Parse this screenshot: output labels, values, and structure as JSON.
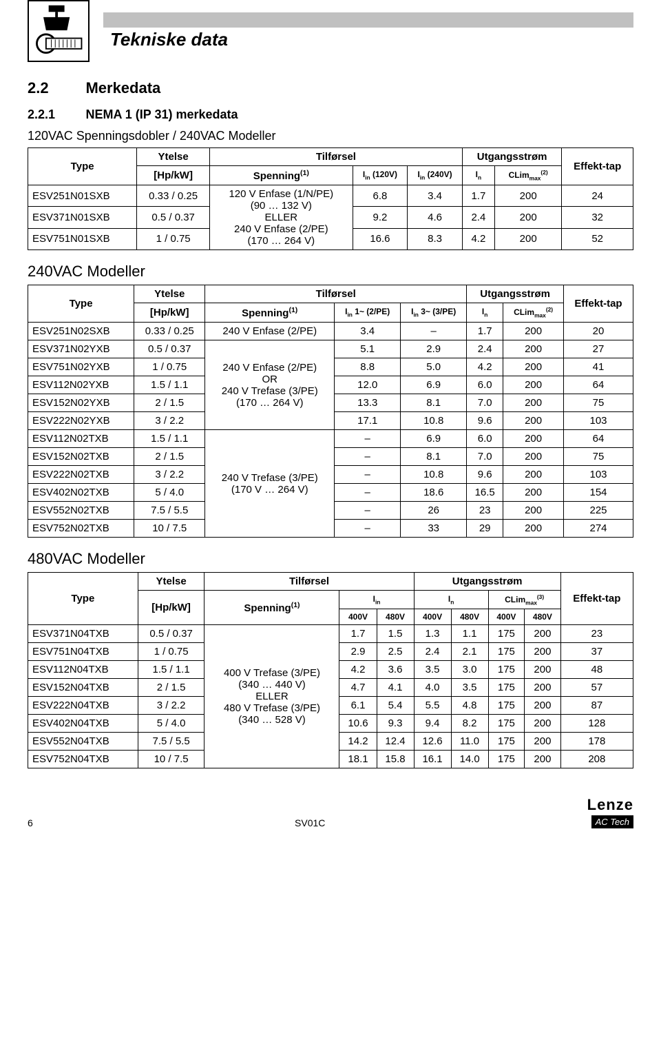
{
  "header": {
    "title": "Tekniske data"
  },
  "section": {
    "num": "2.2",
    "title": "Merkedata"
  },
  "subsection": {
    "num": "2.2.1",
    "title": "NEMA 1 (IP 31) merkedata"
  },
  "labels": {
    "type": "Type",
    "ytelse": "Ytelse",
    "hpkw": "[Hp/kW]",
    "tilforsel": "Tilførsel",
    "utgang": "Utgangsstrøm",
    "spenning": "Spenning",
    "sup1": "(1)",
    "effekttap": "Effekt-tap",
    "i_in": "I",
    "in_sub": "in",
    "i_n": "I",
    "n_sub": "n",
    "clim": "CLim",
    "max_sub": "max",
    "sup2": "(2)",
    "sup3": "(3)",
    "col_120v": "(120V)",
    "col_240v": "(240V)",
    "col_1p": "1~ (2/PE)",
    "col_3p": "3~ (3/PE)",
    "v400": "400V",
    "v480": "480V"
  },
  "t1": {
    "desc": "120VAC Spenningsdobler / 240VAC Modeller",
    "spenning_lines": [
      "120 V Enfase (1/N/PE)",
      "(90 … 132 V)",
      "ELLER",
      "240 V Enfase (2/PE)",
      "(170 … 264 V)"
    ],
    "rows": [
      {
        "type": "ESV251N01SXB",
        "hp": "0.33 / 0.25",
        "a": "6.8",
        "b": "3.4",
        "c": "1.7",
        "d": "200",
        "e": "24"
      },
      {
        "type": "ESV371N01SXB",
        "hp": "0.5 / 0.37",
        "a": "9.2",
        "b": "4.6",
        "c": "2.4",
        "d": "200",
        "e": "32"
      },
      {
        "type": "ESV751N01SXB",
        "hp": "1 / 0.75",
        "a": "16.6",
        "b": "8.3",
        "c": "4.2",
        "d": "200",
        "e": "52"
      }
    ]
  },
  "t2": {
    "header": "240VAC Modeller",
    "sp1": "240 V Enfase (2/PE)",
    "sp2_lines": [
      "240 V Enfase (2/PE)",
      "OR",
      "240 V Trefase (3/PE)",
      "(170 … 264 V)"
    ],
    "sp3_lines": [
      "240 V Trefase (3/PE)",
      "(170 V … 264 V)"
    ],
    "rows": [
      {
        "type": "ESV251N02SXB",
        "hp": "0.33 / 0.25",
        "a": "3.4",
        "b": "–",
        "c": "1.7",
        "d": "200",
        "e": "20"
      },
      {
        "type": "ESV371N02YXB",
        "hp": "0.5 / 0.37",
        "a": "5.1",
        "b": "2.9",
        "c": "2.4",
        "d": "200",
        "e": "27"
      },
      {
        "type": "ESV751N02YXB",
        "hp": "1 / 0.75",
        "a": "8.8",
        "b": "5.0",
        "c": "4.2",
        "d": "200",
        "e": "41"
      },
      {
        "type": "ESV112N02YXB",
        "hp": "1.5 / 1.1",
        "a": "12.0",
        "b": "6.9",
        "c": "6.0",
        "d": "200",
        "e": "64"
      },
      {
        "type": "ESV152N02YXB",
        "hp": "2 / 1.5",
        "a": "13.3",
        "b": "8.1",
        "c": "7.0",
        "d": "200",
        "e": "75"
      },
      {
        "type": "ESV222N02YXB",
        "hp": "3 / 2.2",
        "a": "17.1",
        "b": "10.8",
        "c": "9.6",
        "d": "200",
        "e": "103"
      },
      {
        "type": "ESV112N02TXB",
        "hp": "1.5 / 1.1",
        "a": "–",
        "b": "6.9",
        "c": "6.0",
        "d": "200",
        "e": "64"
      },
      {
        "type": "ESV152N02TXB",
        "hp": "2 / 1.5",
        "a": "–",
        "b": "8.1",
        "c": "7.0",
        "d": "200",
        "e": "75"
      },
      {
        "type": "ESV222N02TXB",
        "hp": "3 / 2.2",
        "a": "–",
        "b": "10.8",
        "c": "9.6",
        "d": "200",
        "e": "103"
      },
      {
        "type": "ESV402N02TXB",
        "hp": "5 / 4.0",
        "a": "–",
        "b": "18.6",
        "c": "16.5",
        "d": "200",
        "e": "154"
      },
      {
        "type": "ESV552N02TXB",
        "hp": "7.5 / 5.5",
        "a": "–",
        "b": "26",
        "c": "23",
        "d": "200",
        "e": "225"
      },
      {
        "type": "ESV752N02TXB",
        "hp": "10 / 7.5",
        "a": "–",
        "b": "33",
        "c": "29",
        "d": "200",
        "e": "274"
      }
    ]
  },
  "t3": {
    "header": "480VAC Modeller",
    "sp_lines": [
      "400 V Trefase (3/PE)",
      "(340 … 440 V)",
      "ELLER",
      "480 V Trefase (3/PE)",
      "(340 … 528 V)"
    ],
    "rows": [
      {
        "type": "ESV371N04TXB",
        "hp": "0.5 / 0.37",
        "v": [
          "1.7",
          "1.5",
          "1.3",
          "1.1",
          "175",
          "200",
          "23"
        ]
      },
      {
        "type": "ESV751N04TXB",
        "hp": "1 / 0.75",
        "v": [
          "2.9",
          "2.5",
          "2.4",
          "2.1",
          "175",
          "200",
          "37"
        ]
      },
      {
        "type": "ESV112N04TXB",
        "hp": "1.5 / 1.1",
        "v": [
          "4.2",
          "3.6",
          "3.5",
          "3.0",
          "175",
          "200",
          "48"
        ]
      },
      {
        "type": "ESV152N04TXB",
        "hp": "2 / 1.5",
        "v": [
          "4.7",
          "4.1",
          "4.0",
          "3.5",
          "175",
          "200",
          "57"
        ]
      },
      {
        "type": "ESV222N04TXB",
        "hp": "3 / 2.2",
        "v": [
          "6.1",
          "5.4",
          "5.5",
          "4.8",
          "175",
          "200",
          "87"
        ]
      },
      {
        "type": "ESV402N04TXB",
        "hp": "5 / 4.0",
        "v": [
          "10.6",
          "9.3",
          "9.4",
          "8.2",
          "175",
          "200",
          "128"
        ]
      },
      {
        "type": "ESV552N04TXB",
        "hp": "7.5 / 5.5",
        "v": [
          "14.2",
          "12.4",
          "12.6",
          "11.0",
          "175",
          "200",
          "178"
        ]
      },
      {
        "type": "ESV752N04TXB",
        "hp": "10 / 7.5",
        "v": [
          "18.1",
          "15.8",
          "16.1",
          "14.0",
          "175",
          "200",
          "208"
        ]
      }
    ]
  },
  "footer": {
    "page": "6",
    "code": "SV01C",
    "brand": "Lenze",
    "sub": "AC Tech"
  }
}
